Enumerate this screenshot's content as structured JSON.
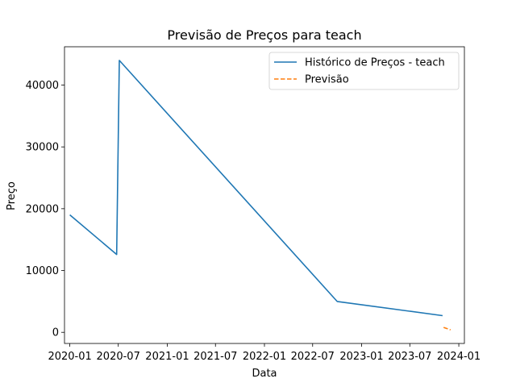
{
  "chart_data": {
    "type": "line",
    "title": "Previsão de Preços para teach",
    "xlabel": "Data",
    "ylabel": "Preço",
    "x_type": "date",
    "xlim": [
      "2019-12-12",
      "2024-01-22"
    ],
    "ylim": [
      -1800,
      46200
    ],
    "x_ticks": [
      "2020-01",
      "2020-07",
      "2021-01",
      "2021-07",
      "2022-01",
      "2022-07",
      "2023-01",
      "2023-07",
      "2024-01"
    ],
    "y_ticks": [
      0,
      10000,
      20000,
      30000,
      40000
    ],
    "y_tick_labels": [
      "0",
      "10000",
      "20000",
      "30000",
      "40000"
    ],
    "grid": false,
    "legend_position": "top-right",
    "series": [
      {
        "name": "Histórico de Preços - teach",
        "color": "#1f77b4",
        "style": "solid",
        "points": [
          {
            "x": "2020-01-01",
            "y": 19000
          },
          {
            "x": "2020-06-25",
            "y": 12600
          },
          {
            "x": "2020-07-05",
            "y": 44000
          },
          {
            "x": "2022-10-01",
            "y": 5000
          },
          {
            "x": "2023-11-01",
            "y": 2700
          }
        ]
      },
      {
        "name": "Previsão",
        "color": "#ff7f0e",
        "style": "dashed",
        "points": [
          {
            "x": "2023-11-05",
            "y": 800
          },
          {
            "x": "2023-12-01",
            "y": 400
          }
        ]
      }
    ]
  }
}
